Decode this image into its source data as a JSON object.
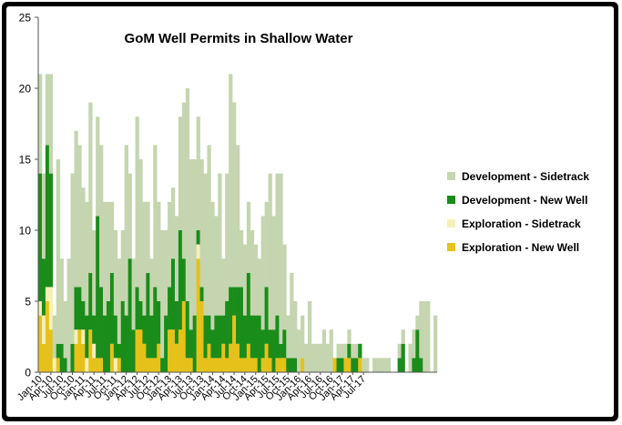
{
  "chart_data": {
    "type": "bar",
    "stacked": true,
    "title": "GoM Well Permits in Shallow Water",
    "xlabel": "",
    "ylabel": "",
    "ylim": [
      0,
      25
    ],
    "yticks": [
      0,
      5,
      10,
      15,
      20,
      25
    ],
    "grid": false,
    "legend_position": "right",
    "x_tick_labels": [
      "Jan-10",
      "Apr-10",
      "Jul-10",
      "Oct-10",
      "Jan-11",
      "Apr-11",
      "Jul-11",
      "Oct-11",
      "Jan-12",
      "Apr-12",
      "Jul-12",
      "Oct-12",
      "Jan-13",
      "Apr-13",
      "Jul-13",
      "Oct-13",
      "Jan-14",
      "Apr-14",
      "Jul-14",
      "Oct-14",
      "Jan-15",
      "Apr-15",
      "Jul-15",
      "Oct-15",
      "Jan-16",
      "Apr-16",
      "Jul-16",
      "Oct-16",
      "Jan-17",
      "Apr-17",
      "Jul-17"
    ],
    "series": [
      {
        "name": "Exploration - New Well",
        "color": "#e6c11a",
        "values": [
          4,
          2,
          5,
          3,
          0,
          1,
          0,
          0,
          0,
          0,
          2,
          3,
          2,
          0,
          3,
          1,
          1,
          1,
          0,
          0,
          2,
          0,
          1,
          0,
          0,
          0,
          0,
          3,
          3,
          2,
          1,
          1,
          1,
          2,
          0,
          0,
          3,
          3,
          2,
          3,
          5,
          1,
          1,
          0,
          8,
          5,
          1,
          2,
          1,
          1,
          1,
          2,
          1,
          2,
          4,
          2,
          1,
          1,
          2,
          1,
          1,
          0,
          1,
          2,
          1,
          0,
          1,
          1,
          1,
          0,
          0,
          0,
          0,
          1,
          0,
          0,
          0,
          0,
          0,
          0,
          0,
          0,
          1,
          0,
          0,
          1,
          1,
          0,
          0,
          1,
          0,
          0,
          0,
          0,
          0,
          0,
          0,
          0,
          0,
          0,
          0,
          0,
          0,
          0,
          0,
          0,
          0,
          0,
          0,
          0,
          0
        ]
      },
      {
        "name": "Exploration - Sidetrack",
        "color": "#f5f0b5",
        "values": [
          1,
          2,
          1,
          3,
          1,
          0,
          0,
          0,
          0,
          0,
          1,
          0,
          1,
          1,
          0,
          1,
          0,
          0,
          0,
          0,
          0,
          1,
          0,
          0,
          0,
          0,
          0,
          0,
          0,
          0,
          0,
          0,
          0,
          0,
          0,
          0,
          0,
          0,
          0,
          0,
          0,
          0,
          0,
          0,
          1,
          0,
          0,
          0,
          0,
          0,
          0,
          0,
          0,
          0,
          0,
          0,
          0,
          0,
          0,
          0,
          0,
          0,
          0,
          0,
          0,
          0,
          0,
          0,
          0,
          0,
          0,
          0,
          0,
          0,
          0,
          0,
          0,
          0,
          0,
          0,
          0,
          0,
          0,
          0,
          0,
          0,
          0,
          0,
          0,
          0,
          0,
          0,
          0,
          0,
          0,
          0,
          0,
          0,
          0,
          0,
          0,
          0,
          0,
          0,
          0,
          0,
          0,
          0,
          0,
          0,
          0
        ]
      },
      {
        "name": "Development - New Well",
        "color": "#1a8c1a",
        "values": [
          9,
          4,
          10,
          8,
          0,
          1,
          2,
          1,
          0,
          2,
          3,
          3,
          2,
          3,
          4,
          2,
          10,
          5,
          4,
          5,
          5,
          3,
          1,
          5,
          4,
          8,
          3,
          3,
          2,
          2,
          6,
          3,
          5,
          3,
          1,
          4,
          3,
          5,
          3,
          7,
          3,
          4,
          2,
          4,
          1,
          1,
          3,
          2,
          2,
          3,
          3,
          2,
          4,
          4,
          2,
          4,
          5,
          3,
          5,
          3,
          3,
          4,
          2,
          4,
          2,
          3,
          3,
          1,
          2,
          1,
          1,
          1,
          0,
          0,
          0,
          0,
          0,
          0,
          0,
          0,
          0,
          0,
          0,
          1,
          1,
          0,
          1,
          1,
          1,
          1,
          0,
          0,
          0,
          0,
          0,
          0,
          0,
          0,
          0,
          0,
          1,
          2,
          0,
          0,
          1,
          3,
          1,
          0,
          0,
          0,
          0
        ]
      },
      {
        "name": "Development - Sidetrack",
        "color": "#c5d5b0",
        "values": [
          7,
          6,
          5,
          7,
          3,
          13,
          6,
          4,
          8,
          12,
          11,
          10,
          8,
          8,
          12,
          6,
          7,
          10,
          8,
          7,
          5,
          6,
          6,
          5,
          12,
          6,
          5,
          12,
          10,
          8,
          5,
          4,
          10,
          7,
          9,
          6,
          6,
          5,
          6,
          8,
          11,
          15,
          12,
          11,
          8,
          9,
          10,
          12,
          9,
          7,
          10,
          4,
          9,
          15,
          13,
          10,
          4,
          5,
          5,
          6,
          5,
          4,
          8,
          6,
          11,
          8,
          10,
          12,
          6,
          3,
          6,
          4,
          3,
          3,
          2,
          5,
          2,
          2,
          2,
          3,
          2,
          3,
          0,
          1,
          1,
          1,
          1,
          1,
          1,
          0,
          1,
          1,
          0,
          1,
          1,
          1,
          1,
          1,
          0,
          0,
          1,
          1,
          0,
          2,
          2,
          1,
          4,
          5,
          5,
          0,
          4
        ]
      }
    ]
  }
}
